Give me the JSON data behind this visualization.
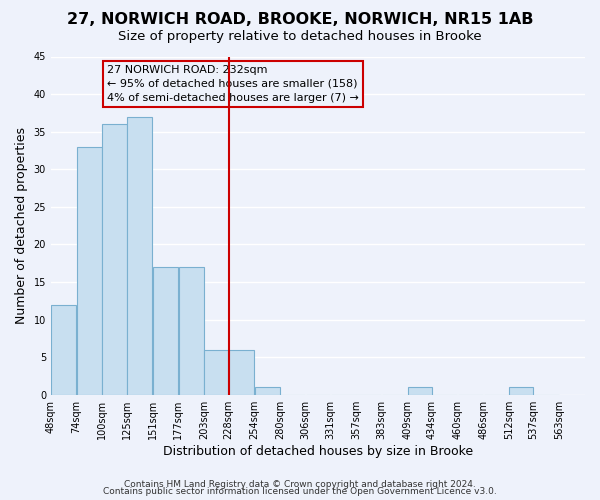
{
  "title": "27, NORWICH ROAD, BROOKE, NORWICH, NR15 1AB",
  "subtitle": "Size of property relative to detached houses in Brooke",
  "xlabel": "Distribution of detached houses by size in Brooke",
  "ylabel": "Number of detached properties",
  "bar_left_edges": [
    48,
    74,
    100,
    125,
    151,
    177,
    203,
    228,
    254,
    280,
    306,
    331,
    357,
    383,
    409,
    434,
    460,
    486,
    512,
    537
  ],
  "bar_heights": [
    12,
    33,
    36,
    37,
    17,
    17,
    6,
    6,
    1,
    0,
    0,
    0,
    0,
    0,
    1,
    0,
    0,
    0,
    1,
    0
  ],
  "bar_widths": [
    26,
    26,
    25,
    26,
    26,
    26,
    25,
    26,
    26,
    26,
    25,
    26,
    26,
    26,
    25,
    26,
    26,
    26,
    25,
    26
  ],
  "tick_labels": [
    "48sqm",
    "74sqm",
    "100sqm",
    "125sqm",
    "151sqm",
    "177sqm",
    "203sqm",
    "228sqm",
    "254sqm",
    "280sqm",
    "306sqm",
    "331sqm",
    "357sqm",
    "383sqm",
    "409sqm",
    "434sqm",
    "460sqm",
    "486sqm",
    "512sqm",
    "537sqm",
    "563sqm"
  ],
  "tick_positions": [
    48,
    74,
    100,
    125,
    151,
    177,
    203,
    228,
    254,
    280,
    306,
    331,
    357,
    383,
    409,
    434,
    460,
    486,
    512,
    537,
    563
  ],
  "xlim_left": 48,
  "xlim_right": 589,
  "bar_color": "#c8dff0",
  "bar_edge_color": "#7ab0d0",
  "highlight_line_x": 228,
  "highlight_line_color": "#cc0000",
  "ylim": [
    0,
    45
  ],
  "yticks": [
    0,
    5,
    10,
    15,
    20,
    25,
    30,
    35,
    40,
    45
  ],
  "annotation_title": "27 NORWICH ROAD: 232sqm",
  "annotation_line1": "← 95% of detached houses are smaller (158)",
  "annotation_line2": "4% of semi-detached houses are larger (7) →",
  "footer_line1": "Contains HM Land Registry data © Crown copyright and database right 2024.",
  "footer_line2": "Contains public sector information licensed under the Open Government Licence v3.0.",
  "background_color": "#eef2fb",
  "grid_color": "#ffffff",
  "title_fontsize": 11.5,
  "subtitle_fontsize": 9.5,
  "axis_label_fontsize": 9,
  "tick_fontsize": 7,
  "annotation_fontsize": 8,
  "footer_fontsize": 6.5
}
